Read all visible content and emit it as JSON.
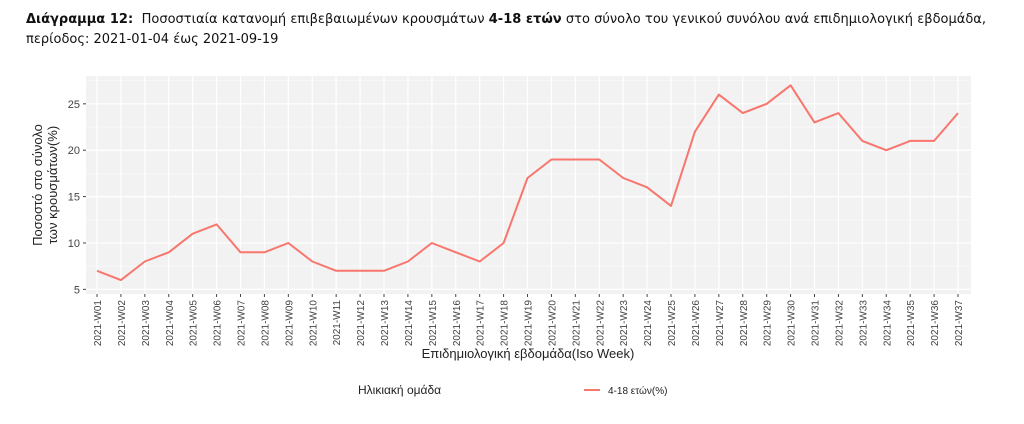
{
  "caption": {
    "label": "Διάγραμμα 12:",
    "text_before": "Ποσοστιαία κατανομή επιβεβαιωμένων κρουσμάτων",
    "age_group": "4-18 ετών",
    "text_after": "στο σύνολο του γενικού συνόλου ανά επιδημιολογική εβδομάδα, περίοδος: 2021-01-04 έως 2021-09-19"
  },
  "chart_data": {
    "type": "line",
    "xlabel": "Επιδημιολογική εβδομάδα(Iso Week)",
    "ylabel_line1": "Ποσοστό στο σύνολο",
    "ylabel_line2": "των κρουσμάτων(%)",
    "ylim": [
      4.5,
      28
    ],
    "yticks": [
      5,
      10,
      15,
      20,
      25
    ],
    "grid": true,
    "legend_position": "bottom",
    "legend_title": "Ηλικιακή ομάδα",
    "categories": [
      "2021-W01",
      "2021-W02",
      "2021-W03",
      "2021-W04",
      "2021-W05",
      "2021-W06",
      "2021-W07",
      "2021-W08",
      "2021-W09",
      "2021-W10",
      "2021-W11",
      "2021-W12",
      "2021-W13",
      "2021-W14",
      "2021-W15",
      "2021-W16",
      "2021-W17",
      "2021-W18",
      "2021-W19",
      "2021-W20",
      "2021-W21",
      "2021-W22",
      "2021-W23",
      "2021-W24",
      "2021-W25",
      "2021-W26",
      "2021-W27",
      "2021-W28",
      "2021-W29",
      "2021-W30",
      "2021-W31",
      "2021-W32",
      "2021-W33",
      "2021-W34",
      "2021-W35",
      "2021-W36",
      "2021-W37"
    ],
    "series": [
      {
        "name": "4-18 ετών(%)",
        "color": "#f8766d",
        "values": [
          7,
          6,
          8,
          9,
          11,
          12,
          9,
          9,
          10,
          8,
          7,
          7,
          7,
          8,
          10,
          9,
          8,
          10,
          17,
          19,
          19,
          19,
          17,
          16,
          14,
          22,
          26,
          24,
          25,
          27,
          23,
          24,
          21,
          20,
          21,
          21,
          24
        ]
      }
    ]
  }
}
